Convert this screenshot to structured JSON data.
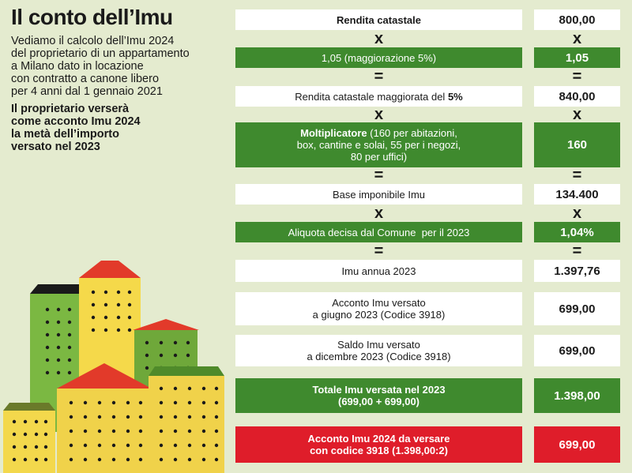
{
  "title": "Il conto dell’Imu",
  "intro_lines": [
    "Vediamo il calcolo dell’Imu 2024",
    "del proprietario di un appartamento",
    "a Milano dato in locazione",
    "con contratto a canone libero",
    "per 4 anni dal 1 gennaio 2021"
  ],
  "note_lines": [
    "Il proprietario verserà",
    "come acconto Imu 2024",
    "la metà dell’importo",
    "versato nel 2023"
  ],
  "rows": {
    "rendita": {
      "label": "Rendita catastale",
      "value": "800,00"
    },
    "maggiorazione": {
      "label": "1,05 (maggiorazione 5%)",
      "value": "1,05"
    },
    "rendita_magg": {
      "label": "Rendita catastale maggiorata del ",
      "label_bold": "5%",
      "value": "840,00"
    },
    "moltiplicatore": {
      "label_bold": "Moltiplicatore",
      "label_l1": " (160 per abitazioni,",
      "label_l2": "box, cantine e solai, 55 per i negozi,",
      "label_l3": "80 per uffici)",
      "value": "160"
    },
    "base": {
      "label": "Base imponibile Imu",
      "value": "134.400"
    },
    "aliquota": {
      "label": "Aliquota decisa dal Comune  per il 2023",
      "value": "1,04%"
    },
    "imu_annua": {
      "label": "Imu annua 2023",
      "value": "1.397,76"
    },
    "acconto": {
      "label_l1": "Acconto Imu versato",
      "label_l2": "a giugno 2023 (Codice 3918)",
      "value": "699,00"
    },
    "saldo": {
      "label_l1": "Saldo Imu versato",
      "label_l2": "a dicembre 2023 (Codice 3918)",
      "value": "699,00"
    },
    "totale": {
      "label_l1": "Totale Imu versata nel 2023",
      "label_l2": "(699,00 + 699,00)",
      "value": "1.398,00"
    },
    "acconto_2024": {
      "label_l1": "Acconto Imu 2024 da versare",
      "label_l2": "con codice 3918 (1.398,00:2)",
      "value": "699,00"
    }
  },
  "ops": {
    "times": "x",
    "equals": "="
  },
  "colors": {
    "background": "#e4ebcf",
    "green": "#3f8a2e",
    "red": "#df1d2a",
    "white": "#ffffff"
  }
}
